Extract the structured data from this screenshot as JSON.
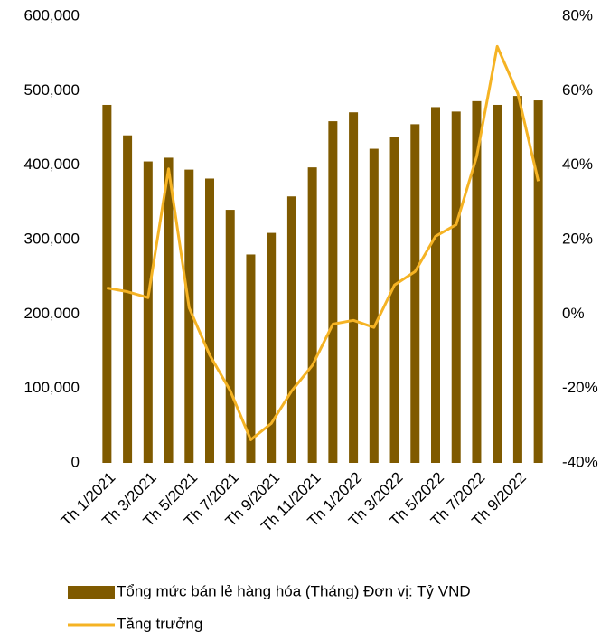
{
  "chart_data": {
    "type": "bar",
    "categories": [
      "Th 1/2021",
      null,
      "Th 3/2021",
      null,
      "Th 5/2021",
      null,
      "Th 7/2021",
      null,
      "Th 9/2021",
      null,
      "Th 11/2021",
      null,
      "Th 1/2022",
      null,
      "Th 3/2022",
      null,
      "Th 5/2022",
      null,
      "Th 7/2022",
      null,
      "Th 9/2022",
      null
    ],
    "series": [
      {
        "name": "Tổng mức bán lẻ hàng hóa (Tháng) Đơn vị: Tỷ VND",
        "type": "bar",
        "color": "#7f5a00",
        "values": [
          481000,
          440000,
          405000,
          410000,
          394000,
          382000,
          340000,
          280000,
          309000,
          358000,
          397000,
          459000,
          471000,
          422000,
          438000,
          455000,
          478000,
          472000,
          486000,
          481000,
          493000,
          487000
        ]
      },
      {
        "name": "Tăng trưởng",
        "type": "line",
        "axis": "y2",
        "color": "#f5b324",
        "values": [
          7.0,
          6.0,
          4.4,
          39,
          1.7,
          -11,
          -20.6,
          -33.8,
          -29.4,
          -20.6,
          -13.8,
          -2.7,
          -1.7,
          -3.6,
          7.8,
          11.4,
          20.9,
          24,
          42.3,
          71.9,
          59.3,
          35.7
        ]
      }
    ],
    "ylim": [
      0,
      600000
    ],
    "yticks": [
      0,
      {
        "value": 100000,
        "label": "100,000"
      },
      {
        "value": 200000,
        "label": "200,000"
      },
      {
        "value": 300000,
        "label": "300,000"
      },
      {
        "value": 400000,
        "label": "400,000"
      },
      {
        "value": 500000,
        "label": "500,000"
      },
      {
        "value": 600000,
        "label": "600,000"
      }
    ],
    "y2lim": [
      -40,
      80
    ],
    "y2ticks": [
      {
        "value": -40,
        "label": "-40%"
      },
      {
        "value": -20,
        "label": "-20%"
      },
      {
        "value": 0,
        "label": "0%"
      },
      {
        "value": 20,
        "label": "20%"
      },
      {
        "value": 40,
        "label": "40%"
      },
      {
        "value": 60,
        "label": "60%"
      },
      {
        "value": 80,
        "label": "80%"
      }
    ]
  }
}
